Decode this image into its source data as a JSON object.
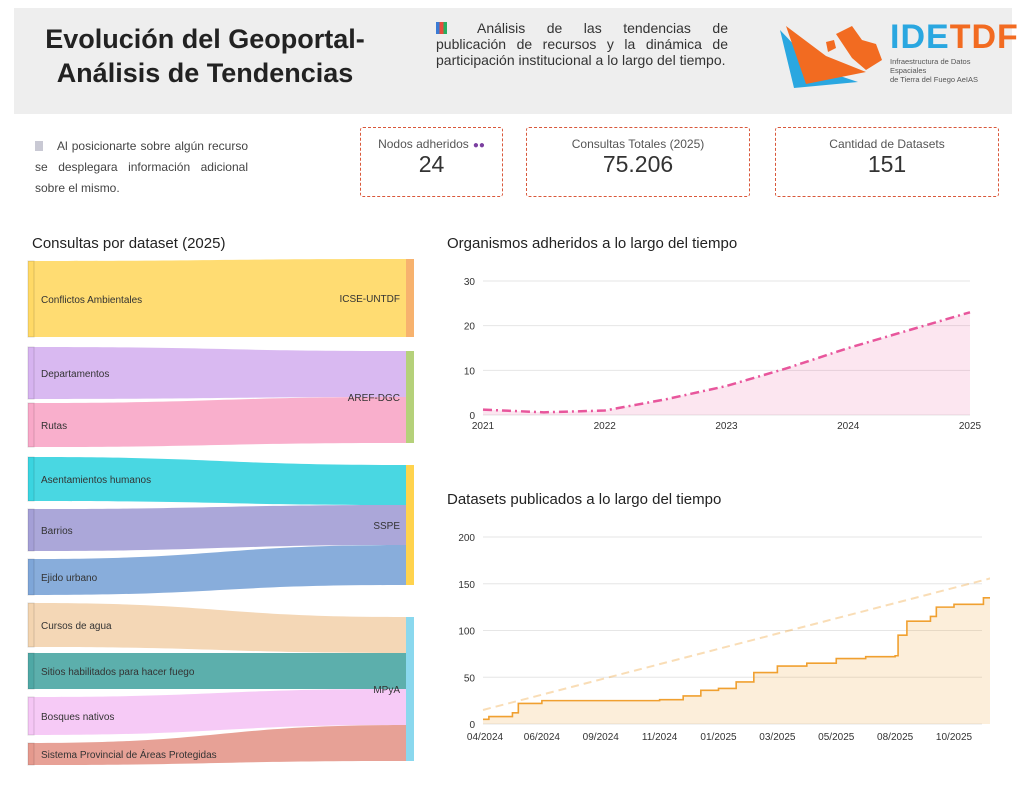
{
  "header": {
    "title_line1": "Evolución del Geoportal-",
    "title_line2": "Análisis de Tendencias",
    "description": "Análisis de las tendencias de publicación de recursos y la dinámica de participación institucional a lo largo del tiempo.",
    "logo_brand_a": "IDE",
    "logo_brand_b": "TDF",
    "logo_sub_line1": "Infraestructura de Datos Espaciales",
    "logo_sub_line2": "de Tierra del Fuego AeIAS",
    "icon": "bar-chart-icon"
  },
  "hint": {
    "icon": "info-icon",
    "text": "Al posicionarte sobre algún recurso se desplegara información adicional sobre el mismo."
  },
  "kpis": [
    {
      "label": "Nodos adheridos",
      "value": "24",
      "icon": "people-icon"
    },
    {
      "label": "Consultas Totales (2025)",
      "value": "75.206"
    },
    {
      "label": "Cantidad de Datasets",
      "value": "151"
    }
  ],
  "chart_data": [
    {
      "type": "sankey",
      "title": "Consultas por dataset (2025)",
      "colors": {
        "accent": "#d9583b"
      },
      "nodes_left": [
        {
          "name": "Conflictos Ambientales",
          "target": "ICSE-UNTDF",
          "color": "#ffd966"
        },
        {
          "name": "Departamentos",
          "target": "AREF-DGC",
          "color": "#d6b3f0"
        },
        {
          "name": "Rutas",
          "target": "AREF-DGC",
          "color": "#f8a8c8"
        },
        {
          "name": "Asentamientos humanos",
          "target": "SSPE",
          "color": "#3ad4e0"
        },
        {
          "name": "Barrios",
          "target": "SSPE",
          "color": "#a49fd6"
        },
        {
          "name": "Ejido urbano",
          "target": "SSPE",
          "color": "#7ea6d8"
        },
        {
          "name": "Cursos de agua",
          "target": "MPyA",
          "color": "#f3d4b0"
        },
        {
          "name": "Sitios habilitados para hacer fuego",
          "target": "MPyA",
          "color": "#4ea8a5"
        },
        {
          "name": "Bosques nativos",
          "target": "MPyA",
          "color": "#f5c6f5"
        },
        {
          "name": "Sistema Provincial de Áreas Protegidas",
          "target": "MPyA",
          "color": "#e5998d"
        }
      ],
      "nodes_right": [
        {
          "name": "ICSE-UNTDF",
          "color": "#f7b26e"
        },
        {
          "name": "AREF-DGC",
          "color": "#b5d17a"
        },
        {
          "name": "SSPE",
          "color": "#ffd34d"
        },
        {
          "name": "MPyA",
          "color": "#8ad8ee"
        }
      ]
    },
    {
      "type": "line",
      "title": "Organismos adheridos a lo largo del tiempo",
      "x": [
        2021,
        2021.5,
        2022,
        2022.5,
        2023,
        2023.5,
        2024,
        2024.5,
        2025
      ],
      "y": [
        1.2,
        0.6,
        1.0,
        3.5,
        6.5,
        10.5,
        15.0,
        19.0,
        23.0
      ],
      "xlim": [
        2021,
        2025
      ],
      "ylim": [
        0,
        30
      ],
      "xticks": [
        "2021",
        "2022",
        "2023",
        "2024",
        "2025"
      ],
      "yticks": [
        "0",
        "10",
        "20",
        "30"
      ],
      "color": "#e8569c",
      "grid": true
    },
    {
      "type": "line",
      "title": "Datasets publicados a lo largo del tiempo",
      "xticks": [
        "04/2024",
        "06/2024",
        "09/2024",
        "11/2024",
        "01/2025",
        "03/2025",
        "05/2025",
        "08/2025",
        "10/2025"
      ],
      "yticks": [
        "0",
        "50",
        "100",
        "150",
        "200"
      ],
      "ylim": [
        0,
        200
      ],
      "series": [
        {
          "points": [
            [
              0,
              5
            ],
            [
              0.1,
              8
            ],
            [
              0.5,
              12
            ],
            [
              0.6,
              22
            ],
            [
              1,
              25
            ],
            [
              2,
              25
            ],
            [
              3,
              26
            ],
            [
              3.4,
              30
            ],
            [
              3.7,
              36
            ],
            [
              4,
              38
            ],
            [
              4.3,
              45
            ],
            [
              4.6,
              55
            ],
            [
              5,
              62
            ],
            [
              5.5,
              65
            ],
            [
              6,
              70
            ],
            [
              6.5,
              72
            ],
            [
              7,
              73
            ],
            [
              7.05,
              95
            ],
            [
              7.2,
              110
            ],
            [
              7.6,
              115
            ],
            [
              7.7,
              125
            ],
            [
              8,
              128
            ],
            [
              8.5,
              135
            ],
            [
              8.8,
              145
            ],
            [
              9,
              152
            ]
          ]
        }
      ],
      "color": "#f0a030",
      "grid": true
    }
  ]
}
